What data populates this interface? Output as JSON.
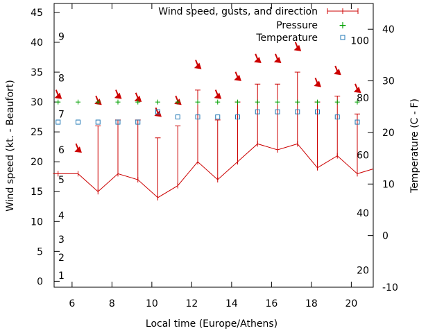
{
  "chart_data": {
    "type": "line",
    "title": "",
    "xlabel": "Local time (Europe/Athens)",
    "ylabel": "Wind speed (kt. - Beaufort)",
    "y2label": "Temperature (C - F)",
    "xlim": [
      5.1,
      21.1
    ],
    "ylim": [
      -1,
      46.5
    ],
    "y2lim": [
      -10,
      45
    ],
    "x_ticks": [
      6,
      8,
      10,
      12,
      14,
      16,
      18,
      20
    ],
    "y_ticks": [
      0,
      5,
      10,
      15,
      20,
      25,
      30,
      35,
      40,
      45
    ],
    "y2_ticks": [
      -10,
      0,
      10,
      20,
      30,
      40
    ],
    "beaufort_labels": [
      {
        "label": "1",
        "y": 1
      },
      {
        "label": "2",
        "y": 4
      },
      {
        "label": "3",
        "y": 7
      },
      {
        "label": "4",
        "y": 11
      },
      {
        "label": "5",
        "y": 17
      },
      {
        "label": "6",
        "y": 22
      },
      {
        "label": "7",
        "y": 28
      },
      {
        "label": "8",
        "y": 34
      },
      {
        "label": "9",
        "y": 41
      }
    ],
    "fahrenheit_labels": [
      {
        "label": "20",
        "y2": -6.7
      },
      {
        "label": "40",
        "y2": 4.4
      },
      {
        "label": "60",
        "y2": 15.6
      },
      {
        "label": "80",
        "y2": 26.7
      },
      {
        "label": "100",
        "y2": 37.8
      }
    ],
    "legend": {
      "placement": "top-right",
      "entries": [
        "Wind speed, gusts, and direction",
        "Pressure",
        "Temperature"
      ]
    },
    "series": [
      {
        "name": "Wind speed, gusts, and direction",
        "color": "#cc0000",
        "x": [
          5.3,
          6.3,
          7.3,
          8.3,
          9.3,
          10.3,
          11.3,
          12.3,
          13.3,
          14.3,
          15.3,
          16.3,
          17.3,
          18.3,
          19.3,
          20.3
        ],
        "speed": [
          18,
          18,
          15,
          18,
          17,
          14,
          16,
          20,
          17,
          20,
          23,
          22,
          23,
          19,
          21,
          18
        ],
        "gust": [
          18,
          18,
          26,
          27,
          27,
          24,
          26,
          32,
          27,
          30,
          33,
          33,
          35,
          30,
          31,
          28
        ],
        "direction_y": [
          31,
          22,
          30,
          31,
          30.5,
          28,
          30,
          36,
          31,
          34,
          37,
          37,
          39,
          33,
          35,
          32
        ],
        "line_start_x": 5.05,
        "line_end_x": 21.1,
        "line_end_y": 18.8
      },
      {
        "name": "Pressure",
        "color": "#00a000",
        "x": [
          5.3,
          6.3,
          7.3,
          8.3,
          9.3,
          10.3,
          11.3,
          12.3,
          13.3,
          14.3,
          15.3,
          16.3,
          17.3,
          18.3,
          19.3,
          20.3
        ],
        "y": [
          30,
          30,
          30,
          30,
          30,
          30,
          30,
          30,
          30,
          30,
          30,
          30,
          30,
          30,
          30,
          30
        ]
      },
      {
        "name": "Temperature",
        "color": "#1f77b4",
        "x": [
          5.3,
          6.3,
          7.3,
          8.3,
          9.3,
          10.3,
          11.3,
          12.3,
          13.3,
          14.3,
          15.3,
          16.3,
          17.3,
          18.3,
          19.3,
          20.3
        ],
        "y": [
          22,
          22,
          22,
          22,
          22,
          24,
          23,
          23,
          23,
          23,
          24,
          24,
          24,
          24,
          23,
          22
        ]
      }
    ]
  }
}
